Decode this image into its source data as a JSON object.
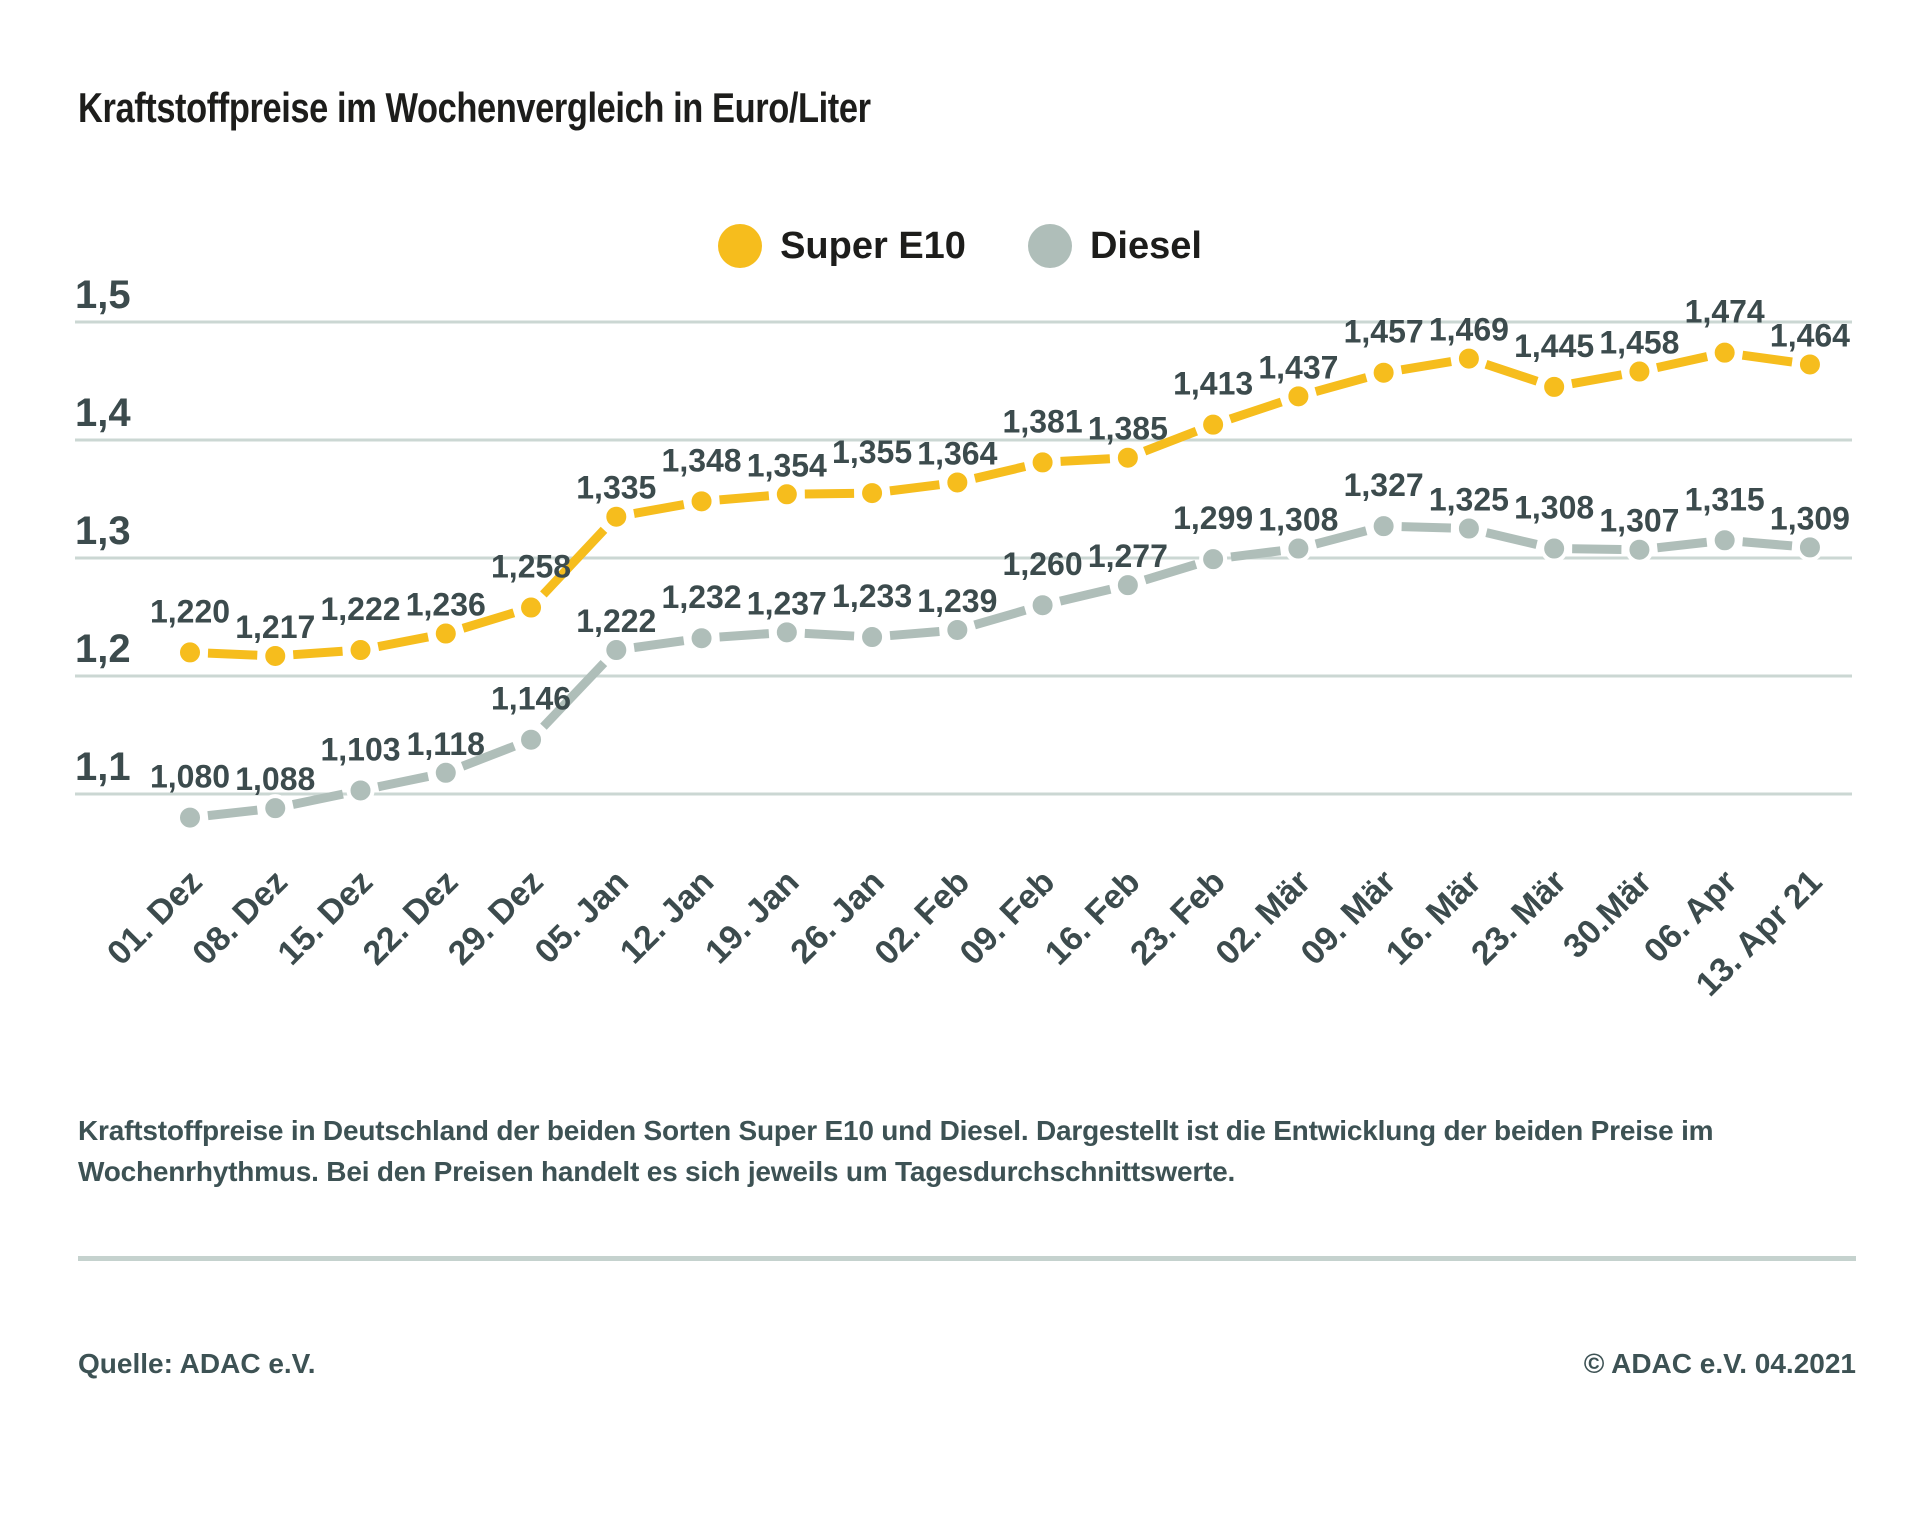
{
  "page": {
    "title": "Kraftstoffpreise im Wochenvergleich in Euro/Liter"
  },
  "chart_data": {
    "type": "line",
    "title": "Kraftstoffpreise im Wochenvergleich in Euro/Liter",
    "unit": "Euro/Liter",
    "grid": "horizontal",
    "legend_position": "top-center",
    "categories": [
      "01. Dez",
      "08. Dez",
      "15. Dez",
      "22. Dez",
      "29. Dez",
      "05. Jan",
      "12. Jan",
      "19. Jan",
      "26. Jan",
      "02. Feb",
      "09. Feb",
      "16. Feb",
      "23. Feb",
      "02. Mär",
      "09. Mär",
      "16. Mär",
      "23. Mär",
      "30.Mär",
      "06. Apr",
      "13. Apr 21"
    ],
    "series": [
      {
        "name": "Super E10",
        "color": "#F6BD1D",
        "values": [
          1.22,
          1.217,
          1.222,
          1.236,
          1.258,
          1.335,
          1.348,
          1.354,
          1.355,
          1.364,
          1.381,
          1.385,
          1.413,
          1.437,
          1.457,
          1.469,
          1.445,
          1.458,
          1.474,
          1.464
        ]
      },
      {
        "name": "Diesel",
        "color": "#AFBEB9",
        "values": [
          1.08,
          1.088,
          1.103,
          1.118,
          1.146,
          1.222,
          1.232,
          1.237,
          1.233,
          1.239,
          1.26,
          1.277,
          1.299,
          1.308,
          1.327,
          1.325,
          1.308,
          1.307,
          1.315,
          1.309
        ]
      }
    ],
    "yticks": {
      "values": [
        1.5,
        1.4,
        1.3,
        1.2,
        1.1
      ],
      "labels": [
        "1,5",
        "1,4",
        "1,3",
        "1,2",
        "1,1"
      ]
    },
    "ylim": [
      1.05,
      1.52
    ],
    "decimal_separator": ",",
    "value_label_decimals": 3
  },
  "colors": {
    "super_e10": "#F6BD1D",
    "diesel": "#AFBEB9",
    "axis_text": "#3C4B4D",
    "gridline": "#CBD7D3",
    "title_text": "#1D1D1B",
    "note_text": "#3D5254",
    "divider": "#C5D2CE"
  },
  "description": {
    "line1": "Kraftstoffpreise in Deutschland der beiden Sorten Super E10 und Diesel. Dargestellt ist die Entwicklung der beiden Preise im",
    "line2": "Wochenrhythmus. Bei den Preisen handelt es sich jeweils um Tagesdurchschnittswerte."
  },
  "footer": {
    "source": "Quelle: ADAC e.V.",
    "copyright": "© ADAC e.V. 04.2021"
  }
}
